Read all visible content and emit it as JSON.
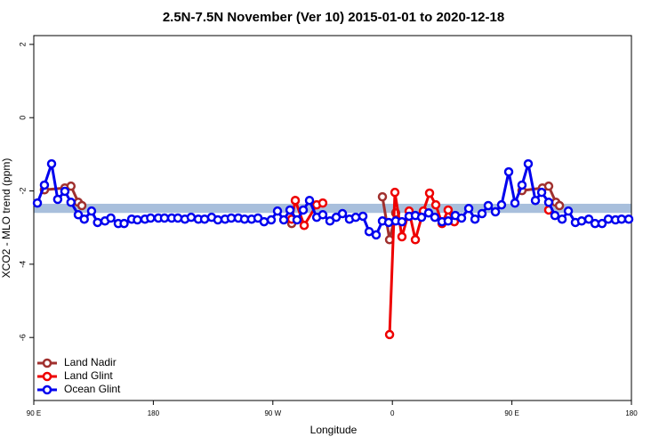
{
  "chart_data": {
    "type": "line",
    "title": "2.5N-7.5N November (Ver 10)   2015-01-01 to 2020-12-18",
    "x_label": "Longitude",
    "y_label": "XCO2 - MLO trend (ppm)",
    "xlim": [
      90,
      540
    ],
    "ylim": [
      -7.72,
      2.24
    ],
    "xticks": [
      {
        "value": 90,
        "label": "90 E"
      },
      180,
      {
        "value": 270,
        "label": "90 W"
      },
      {
        "value": 360,
        "label": "0"
      },
      {
        "value": 450,
        "label": "90 E"
      },
      {
        "value": 540,
        "label": "180"
      }
    ],
    "yticks": [
      -6,
      -4,
      -2,
      0,
      2
    ],
    "reference_band": {
      "ymin": -2.6,
      "ymax": -2.35,
      "color": "#a8bfdc"
    },
    "legend": "bottom-left",
    "series": [
      {
        "name": "Land Nadir",
        "color": "#a0302e",
        "x": [
          98,
          113.4,
          118,
          123.5,
          126.2,
          null,
          284.2,
          null,
          352.5,
          357.9,
          362.5,
          null,
          457.6,
          473,
          477.7,
          483.1,
          485.8
        ],
        "values": [
          -1.97,
          -1.92,
          -1.87,
          -2.31,
          -2.4,
          null,
          -2.89,
          null,
          -2.16,
          -3.33,
          -2.6,
          null,
          -1.99,
          -1.92,
          -1.87,
          -2.31,
          -2.4
        ]
      },
      {
        "name": "Land Glint",
        "color": "#ee0000",
        "x": [
          284.2,
          286.9,
          293.6,
          303,
          307.6,
          null,
          357.9,
          361.9,
          367.2,
          372.6,
          377.3,
          383.3,
          388,
          392.7,
          397.4,
          402,
          406.7,
          null,
          477.7
        ],
        "values": [
          -2.77,
          -2.26,
          -2.94,
          -2.38,
          -2.33,
          null,
          -5.92,
          -2.04,
          -3.25,
          -2.55,
          -3.33,
          -2.55,
          -2.06,
          -2.38,
          -2.89,
          -2.52,
          -2.84,
          null,
          -2.52
        ]
      },
      {
        "name": "Ocean Glint",
        "color": "#0000ee",
        "x": [
          92.7,
          98,
          103.4,
          108,
          113.4,
          118,
          123.5,
          128,
          133.5,
          138,
          143.6,
          148,
          153.6,
          158,
          163.7,
          168,
          173.7,
          178,
          183.8,
          188.4,
          193.8,
          198.5,
          203.8,
          208.5,
          213.9,
          218.6,
          223.9,
          228.6,
          234,
          238.7,
          244,
          248.7,
          254,
          258.8,
          263.4,
          268.8,
          273.5,
          278.2,
          282.9,
          288.2,
          292.9,
          297.6,
          303,
          307.6,
          313,
          317.7,
          322.4,
          327.7,
          332.4,
          337.8,
          342.5,
          347.8,
          352.5,
          357.2,
          362.5,
          367.2,
          372.6,
          377.3,
          382,
          387.3,
          392,
          397.4,
          402,
          407.4,
          412.1,
          417.5,
          422.2,
          427.5,
          432.2,
          437.6,
          442.2,
          447.6,
          452.3,
          457.6,
          462.3,
          467.7,
          472.4,
          477.7,
          482.4,
          487.8,
          492.5,
          497.8,
          502.5,
          507.9,
          512.6,
          517.9,
          522.6,
          528,
          532.6,
          538
        ],
        "values": [
          -2.33,
          -1.84,
          -1.26,
          -2.23,
          -2.01,
          -2.31,
          -2.65,
          -2.77,
          -2.55,
          -2.86,
          -2.82,
          -2.74,
          -2.89,
          -2.89,
          -2.77,
          -2.79,
          -2.77,
          -2.74,
          -2.74,
          -2.74,
          -2.74,
          -2.74,
          -2.77,
          -2.72,
          -2.77,
          -2.77,
          -2.72,
          -2.79,
          -2.77,
          -2.74,
          -2.74,
          -2.77,
          -2.77,
          -2.74,
          -2.84,
          -2.79,
          -2.55,
          -2.79,
          -2.52,
          -2.79,
          -2.52,
          -2.26,
          -2.72,
          -2.65,
          -2.82,
          -2.72,
          -2.62,
          -2.77,
          -2.72,
          -2.69,
          -3.11,
          -3.2,
          -2.82,
          -2.86,
          -2.82,
          -2.84,
          -2.69,
          -2.67,
          -2.72,
          -2.6,
          -2.72,
          -2.84,
          -2.82,
          -2.67,
          -2.74,
          -2.48,
          -2.77,
          -2.62,
          -2.4,
          -2.57,
          -2.38,
          -1.48,
          -2.33,
          -1.84,
          -1.26,
          -2.26,
          -2.04,
          -2.31,
          -2.67,
          -2.77,
          -2.55,
          -2.86,
          -2.82,
          -2.77,
          -2.89,
          -2.89,
          -2.77,
          -2.79,
          -2.77,
          -2.77
        ]
      }
    ]
  }
}
